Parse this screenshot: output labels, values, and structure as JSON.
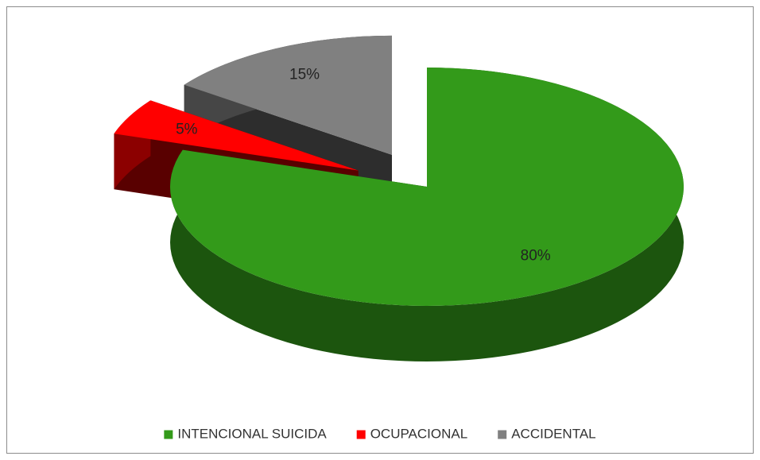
{
  "chart_data": {
    "type": "pie",
    "categories": [
      "INTENCIONAL SUICIDA",
      "OCUPACIONAL",
      "ACCIDENTAL"
    ],
    "values": [
      80,
      5,
      15
    ],
    "value_labels": [
      "80%",
      "5%",
      "15%"
    ],
    "colors": [
      "#339a1a",
      "#ff0000",
      "#808080"
    ],
    "legend": "bottom"
  }
}
